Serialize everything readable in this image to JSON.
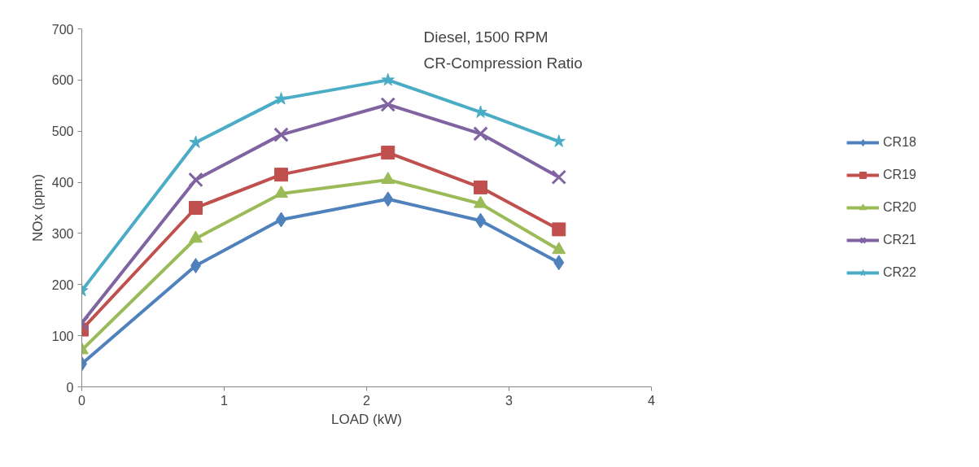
{
  "chart_data": {
    "type": "line",
    "xlabel": "LOAD (kW)",
    "ylabel": "NOx (ppm)",
    "annotations": [
      "Diesel, 1500 RPM",
      "CR-Compression Ratio"
    ],
    "x": [
      0,
      0.8,
      1.4,
      2.15,
      2.8,
      3.35
    ],
    "series": [
      {
        "name": "CR18",
        "color": "#4f81bd",
        "marker": "diamond",
        "values": [
          45,
          237,
          327,
          367,
          325,
          243
        ]
      },
      {
        "name": "CR19",
        "color": "#c0504d",
        "marker": "square",
        "values": [
          112,
          350,
          415,
          458,
          390,
          308
        ]
      },
      {
        "name": "CR20",
        "color": "#9bbb59",
        "marker": "triangle",
        "values": [
          72,
          290,
          378,
          405,
          358,
          268
        ]
      },
      {
        "name": "CR21",
        "color": "#8064a2",
        "marker": "cross",
        "values": [
          125,
          405,
          493,
          552,
          495,
          410
        ]
      },
      {
        "name": "CR22",
        "color": "#4bacc6",
        "marker": "star",
        "values": [
          188,
          478,
          563,
          600,
          537,
          480
        ]
      }
    ],
    "xlim": [
      0,
      4
    ],
    "xticks": [
      0,
      1,
      2,
      3,
      4
    ],
    "ylim": [
      0,
      700
    ],
    "yticks": [
      0,
      100,
      200,
      300,
      400,
      500,
      600,
      700
    ],
    "grid": false,
    "legend": "right",
    "line_style": "solid"
  }
}
